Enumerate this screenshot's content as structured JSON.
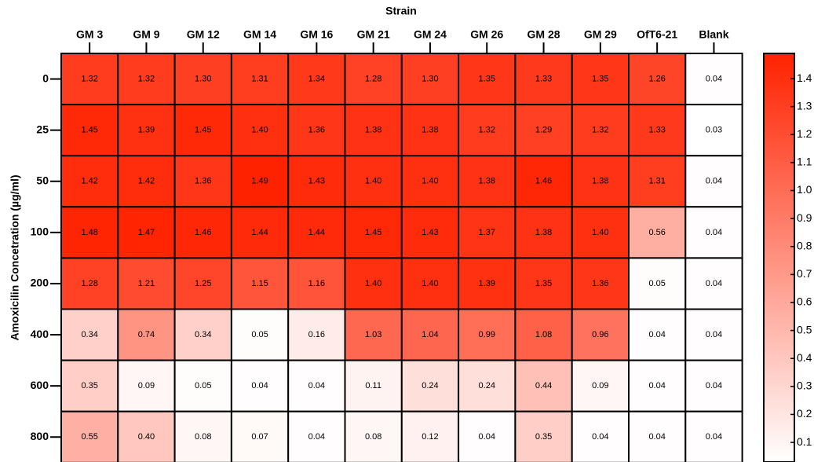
{
  "chart_data": {
    "type": "heatmap",
    "x_label": "Strain",
    "y_label": "Amoxicilin Concetration (µg/ml)",
    "categories": [
      "GM 3",
      "GM 9",
      "GM 12",
      "GM 14",
      "GM 16",
      "GM 21",
      "GM 24",
      "GM 26",
      "GM 28",
      "GM 29",
      "OfT6-21",
      "Blank"
    ],
    "rows": [
      "0",
      "25",
      "50",
      "100",
      "200",
      "400",
      "600",
      "800"
    ],
    "values": [
      [
        1.32,
        1.32,
        1.3,
        1.31,
        1.34,
        1.28,
        1.3,
        1.35,
        1.33,
        1.35,
        1.26,
        0.04
      ],
      [
        1.45,
        1.39,
        1.45,
        1.4,
        1.36,
        1.38,
        1.38,
        1.32,
        1.29,
        1.32,
        1.33,
        0.03
      ],
      [
        1.42,
        1.42,
        1.36,
        1.49,
        1.43,
        1.4,
        1.4,
        1.38,
        1.46,
        1.38,
        1.31,
        0.04
      ],
      [
        1.48,
        1.47,
        1.46,
        1.44,
        1.44,
        1.45,
        1.43,
        1.37,
        1.38,
        1.4,
        0.56,
        0.04
      ],
      [
        1.28,
        1.21,
        1.25,
        1.15,
        1.16,
        1.4,
        1.4,
        1.39,
        1.35,
        1.36,
        0.05,
        0.04
      ],
      [
        0.34,
        0.74,
        0.34,
        0.05,
        0.16,
        1.03,
        1.04,
        0.99,
        1.08,
        0.96,
        0.04,
        0.04
      ],
      [
        0.35,
        0.09,
        0.05,
        0.04,
        0.04,
        0.11,
        0.24,
        0.24,
        0.44,
        0.09,
        0.04,
        0.04
      ],
      [
        0.55,
        0.4,
        0.08,
        0.07,
        0.04,
        0.08,
        0.12,
        0.04,
        0.35,
        0.04,
        0.04,
        0.04
      ]
    ],
    "value_labels": [
      [
        "1.32",
        "1.32",
        "1.30",
        "1.31",
        "1.34",
        "1.28",
        "1.30",
        "1.35",
        "1.33",
        "1.35",
        "1.26",
        "0.04"
      ],
      [
        "1.45",
        "1.39",
        "1.45",
        "1.40",
        "1.36",
        "1.38",
        "1.38",
        "1.32",
        "1.29",
        "1.32",
        "1.33",
        "0.03"
      ],
      [
        "1.42",
        "1.42",
        "1.36",
        "1.49",
        "1.43",
        "1.40",
        "1.40",
        "1.38",
        "1.46",
        "1.38",
        "1.31",
        "0.04"
      ],
      [
        "1.48",
        "1.47",
        "1.46",
        "1.44",
        "1.44",
        "1.45",
        "1.43",
        "1.37",
        "1.38",
        "1.40",
        "0.56",
        "0.04"
      ],
      [
        "1.28",
        "1.21",
        "1.25",
        "1.15",
        "1.16",
        "1.40",
        "1.40",
        "1.39",
        "1.35",
        "1.36",
        "0.05",
        "0.04"
      ],
      [
        "0.34",
        "0.74",
        "0.34",
        "0.05",
        "0.16",
        "1.03",
        "1.04",
        "0.99",
        "1.08",
        "0.96",
        "0.04",
        "0.04"
      ],
      [
        "0.35",
        "0.09",
        "0.05",
        "0.04",
        "0.04",
        "0.11",
        "0.24",
        "0.24",
        "0.44",
        "0.09",
        "0.04",
        "0.04"
      ],
      [
        "0.55",
        "0.40",
        "0.08",
        "0.07",
        "0.04",
        "0.08",
        "0.12",
        "0.04",
        "0.35",
        "0.04",
        "0.04",
        "0.04"
      ]
    ],
    "color_low": "#ffffff",
    "color_high": "#ff2200",
    "zlim": [
      0.03,
      1.49
    ],
    "zticks": [
      0.1,
      0.2,
      0.3,
      0.4,
      0.5,
      0.6,
      0.7,
      0.8,
      0.9,
      {
        "value": 1,
        "label": "1.0"
      },
      1.1,
      1.2,
      1.3,
      1.4
    ]
  }
}
